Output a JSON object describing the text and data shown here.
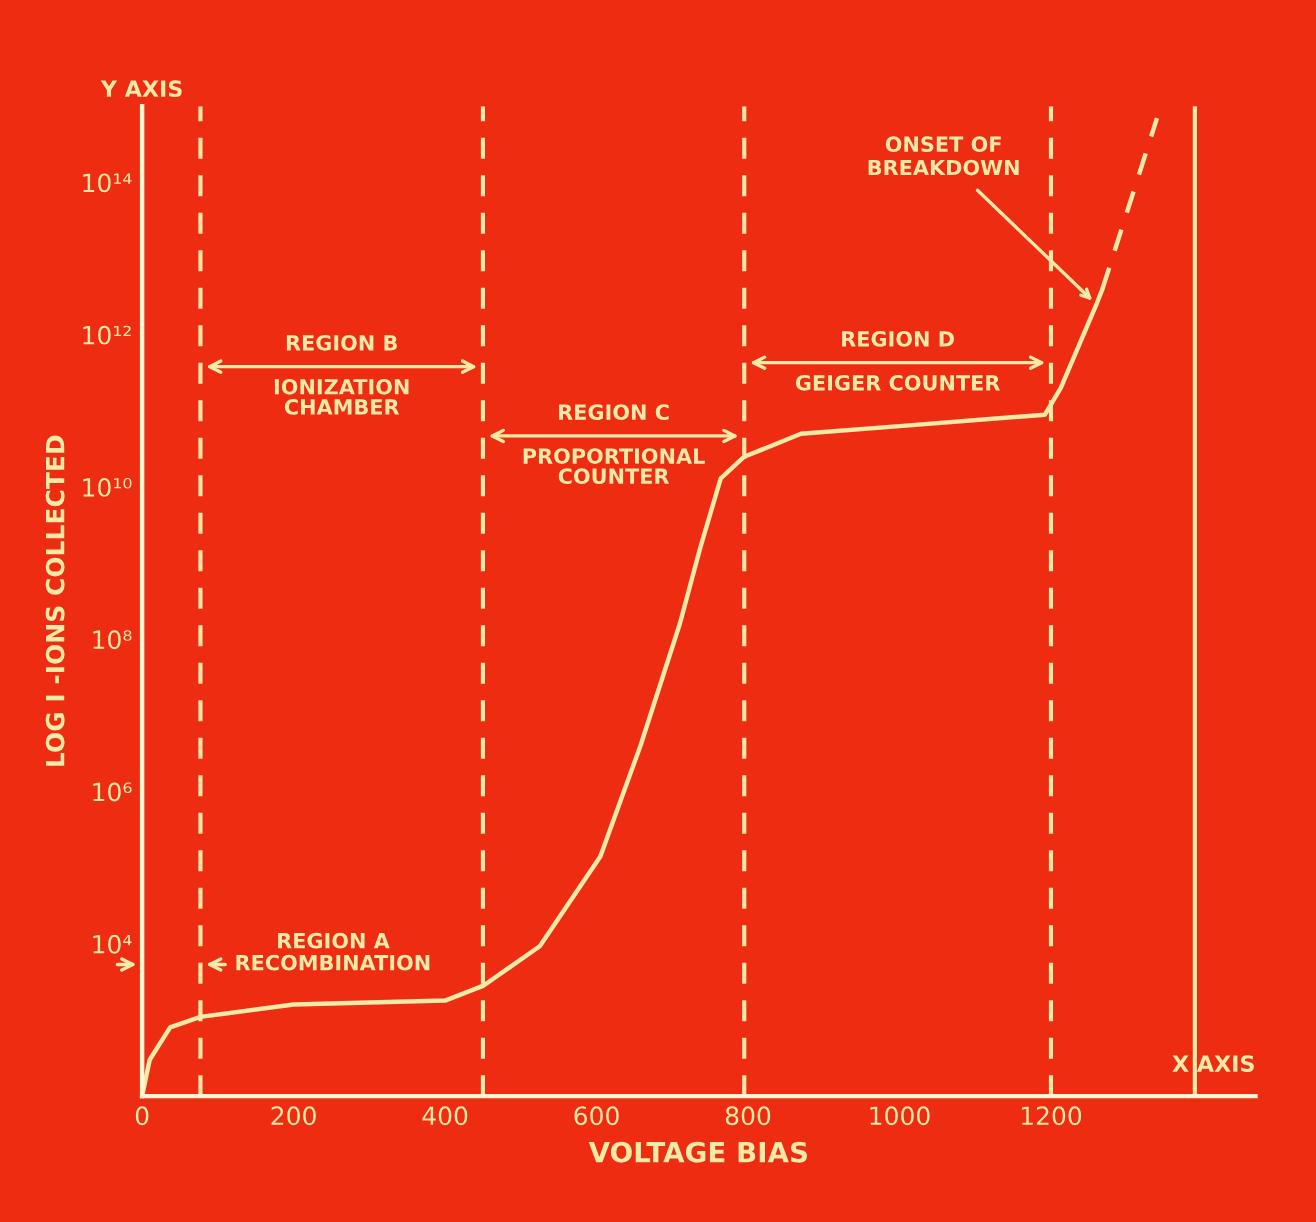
{
  "chart_data": {
    "type": "line",
    "xlabel": "VOLTAGE BIAS",
    "ylabel": "LOG I -IONS COLLECTED",
    "log": "y",
    "xlim": [
      0,
      1470
    ],
    "ylim": [
      100,
      1000000000000000.0
    ],
    "xticks": [
      0,
      200,
      400,
      600,
      800,
      1000,
      1200
    ],
    "yticks": [
      {
        "value": 10000,
        "label": "10⁴"
      },
      {
        "value": 1000000,
        "label": "10⁶"
      },
      {
        "value": 100000000,
        "label": "10⁸"
      },
      {
        "value": 10000000000,
        "label": "10¹⁰"
      },
      {
        "value": 1000000000000,
        "label": "10¹²"
      },
      {
        "value": 100000000000000,
        "label": "10¹⁴"
      }
    ],
    "grid": false,
    "legend": false,
    "marker": "none",
    "series": [
      {
        "color": "#f7e9a6",
        "line_style": "solid",
        "x": [
          0,
          10,
          37,
          77,
          200,
          400,
          450,
          525,
          605,
          658,
          710,
          737,
          764,
          795,
          870,
          1000,
          1192,
          1213,
          1260,
          1268
        ],
        "values": [
          100,
          300,
          800,
          1100,
          1600,
          1800,
          2800,
          9300,
          140000,
          4000000,
          160000000,
          1600000000,
          13000000000,
          25000000000,
          50000000000,
          63000000000,
          89000000000,
          200000000000,
          2500000000000,
          4000000000000
        ]
      },
      {
        "color": "#f7e9a6",
        "line_style": "dashed",
        "x": [
          1268,
          1340
        ],
        "values": [
          4000000000000,
          700000000000000
        ]
      }
    ],
    "ref_lines": [
      {
        "axis": "x",
        "value": 77,
        "line_style": "dashed",
        "color": "#f7e9a6"
      },
      {
        "axis": "x",
        "value": 450,
        "line_style": "dashed",
        "color": "#f7e9a6"
      },
      {
        "axis": "x",
        "value": 795,
        "line_style": "dashed",
        "color": "#f7e9a6"
      },
      {
        "axis": "x",
        "value": 1200,
        "line_style": "dashed",
        "color": "#f7e9a6"
      },
      {
        "axis": "x",
        "value": 1390,
        "line_style": "solid",
        "color": "#f7e9a6"
      }
    ],
    "annotations": [
      "REGION A\nRECOMBINATION",
      "REGION B\nIONIZATION\nCHAMBER",
      "REGION C\nPROPORTIONAL\nCOUNTER",
      "REGION D\nGEIGER COUNTER",
      {
        "text": "ONSET OF\nBREAKDOWN",
        "x": 1260,
        "y": 2500000000000
      },
      "Y AXIS",
      "X AXIS"
    ]
  }
}
